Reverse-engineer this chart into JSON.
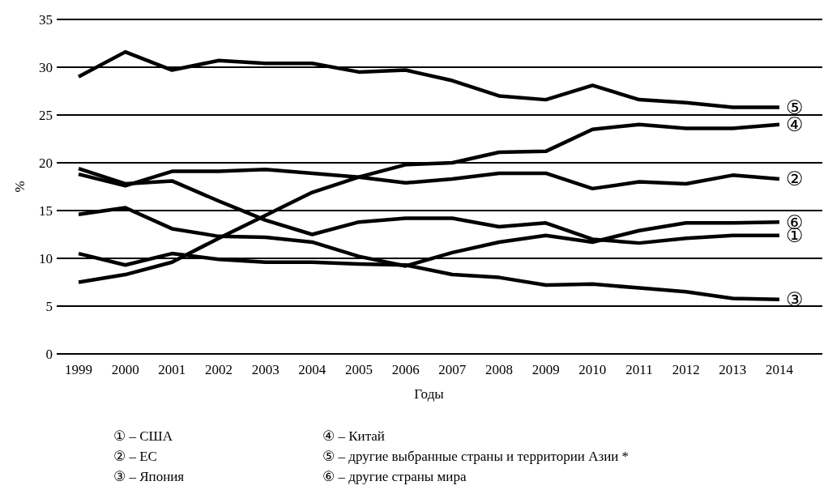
{
  "chart_data": {
    "type": "line",
    "xlabel": "Годы",
    "ylabel": "%",
    "categories": [
      "1999",
      "2000",
      "2001",
      "2002",
      "2003",
      "2004",
      "2005",
      "2006",
      "2007",
      "2008",
      "2009",
      "2010",
      "2011",
      "2012",
      "2013",
      "2014"
    ],
    "ylim": [
      0,
      35
    ],
    "yticks": [
      0,
      5,
      10,
      15,
      20,
      25,
      30,
      35
    ],
    "grid": "y",
    "marker": "none",
    "line_style": "solid",
    "series": [
      {
        "name": "①",
        "color": "#000000",
        "values": [
          19.4,
          17.8,
          18.1,
          16,
          14,
          12.5,
          13.8,
          14.2,
          14.2,
          13.3,
          13.7,
          12.0,
          11.6,
          12.1,
          12.4,
          12.4
        ]
      },
      {
        "name": "②",
        "color": "#000000",
        "values": [
          18.8,
          17.6,
          19.1,
          19.1,
          19.3,
          18.9,
          18.5,
          17.9,
          18.3,
          18.9,
          18.9,
          17.3,
          18.0,
          17.8,
          18.7,
          18.3
        ]
      },
      {
        "name": "③",
        "color": "#000000",
        "values": [
          10.5,
          9.3,
          10.5,
          9.9,
          9.6,
          9.6,
          9.4,
          9.3,
          8.3,
          8.0,
          7.2,
          7.3,
          6.9,
          6.5,
          5.8,
          5.7
        ]
      },
      {
        "name": "④",
        "color": "#000000",
        "values": [
          7.5,
          8.3,
          9.6,
          12.1,
          14.5,
          16.9,
          18.5,
          19.8,
          20.0,
          21.1,
          21.2,
          23.5,
          24.0,
          23.6,
          23.6,
          24.0
        ]
      },
      {
        "name": "⑤",
        "color": "#000000",
        "values": [
          29.0,
          31.6,
          29.7,
          30.7,
          30.4,
          30.4,
          29.5,
          29.7,
          28.6,
          27.0,
          26.6,
          28.1,
          26.6,
          26.3,
          25.8,
          25.8
        ]
      },
      {
        "name": "⑥",
        "color": "#000000",
        "values": [
          14.6,
          15.3,
          13.1,
          12.3,
          12.2,
          11.7,
          10.2,
          9.2,
          10.6,
          11.7,
          12.4,
          11.7,
          12.9,
          13.7,
          13.7,
          13.8
        ]
      }
    ],
    "annotations": [
      "① – США",
      "② – ЕС",
      "③ – Япония",
      "④ – Китай",
      "⑤ – другие выбранные страны и территории Азии *",
      "⑥ – другие страны мира"
    ]
  }
}
